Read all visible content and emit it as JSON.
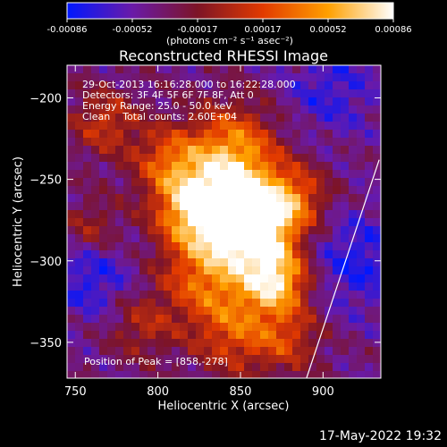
{
  "chart_data": {
    "type": "heatmap",
    "title": "Reconstructed RHESSI Image",
    "xlabel": "Heliocentric X (arcsec)",
    "ylabel": "Heliocentric Y (arcsec)",
    "xlim": [
      745,
      935
    ],
    "ylim": [
      -372,
      -180
    ],
    "xticks": [
      750,
      800,
      850,
      900
    ],
    "yticks": [
      -200,
      -250,
      -300,
      -350
    ],
    "colorbar": {
      "ticks": [
        "-0.00086",
        "-0.00052",
        "-0.00017",
        "0.00017",
        "0.00052",
        "0.00086"
      ],
      "label": "(photons cm⁻² s⁻¹ asec⁻²)",
      "range": [
        -0.00086,
        0.00086
      ],
      "colors": [
        "#0018ff",
        "#6a1aa8",
        "#7d1426",
        "#e23a00",
        "#ffa000",
        "#ffffff"
      ]
    },
    "annotations": [
      "29-Oct-2013 16:16:28.000 to 16:22:28.000",
      "Detectors: 3F 4F 5F 6F 7F 8F, Att 0",
      "Energy Range: 25.0 - 50.0 keV",
      "Clean    Total counts: 2.60E+04"
    ],
    "peak_label": "Position of Peak = [858,-278]",
    "peak": [
      858,
      -278
    ],
    "limb_line": [
      [
        890,
        -372
      ],
      [
        934,
        -238
      ]
    ],
    "sources": [
      {
        "x": 858,
        "y": -278,
        "amp": 1.0,
        "sigma": 17
      },
      {
        "x": 842,
        "y": -262,
        "amp": 0.75,
        "sigma": 22
      },
      {
        "x": 872,
        "y": -312,
        "amp": 0.85,
        "sigma": 14
      },
      {
        "x": 830,
        "y": -310,
        "amp": 0.55,
        "sigma": 20
      },
      {
        "x": 820,
        "y": -268,
        "amp": 0.55,
        "sigma": 16
      },
      {
        "x": 806,
        "y": -238,
        "amp": 0.45,
        "sigma": 15
      },
      {
        "x": 846,
        "y": -228,
        "amp": 0.5,
        "sigma": 18
      },
      {
        "x": 884,
        "y": -262,
        "amp": 0.45,
        "sigma": 14
      },
      {
        "x": 848,
        "y": -345,
        "amp": 0.45,
        "sigma": 18
      },
      {
        "x": 880,
        "y": -348,
        "amp": 0.35,
        "sigma": 14
      },
      {
        "x": 768,
        "y": -215,
        "amp": 0.4,
        "sigma": 14
      },
      {
        "x": 760,
        "y": -280,
        "amp": 0.3,
        "sigma": 12
      },
      {
        "x": 790,
        "y": -340,
        "amp": 0.3,
        "sigma": 14
      },
      {
        "x": 905,
        "y": -195,
        "amp": -0.25,
        "sigma": 20
      },
      {
        "x": 760,
        "y": -310,
        "amp": -0.3,
        "sigma": 18
      },
      {
        "x": 920,
        "y": -300,
        "amp": -0.3,
        "sigma": 22
      }
    ]
  },
  "footer": {
    "timestamp": "17-May-2022 19:32"
  }
}
